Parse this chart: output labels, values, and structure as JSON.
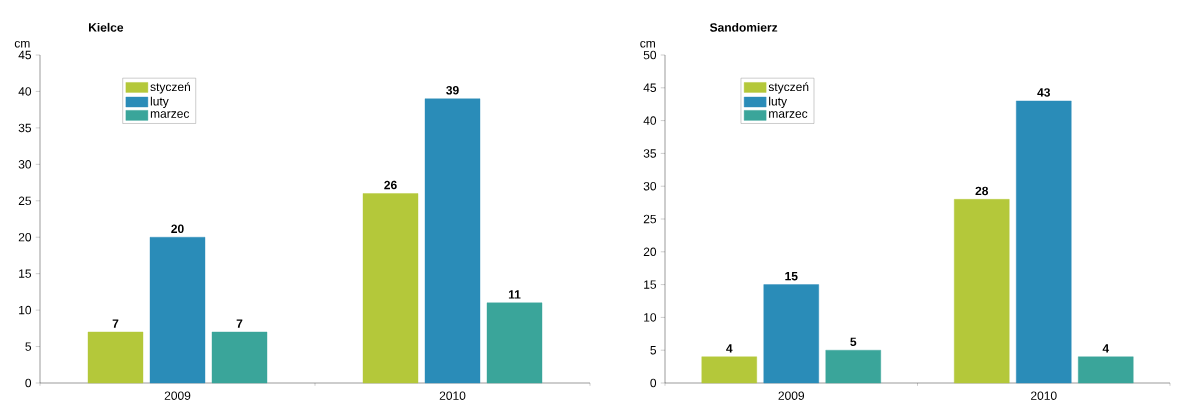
{
  "chart_data": [
    {
      "type": "bar",
      "title": "Kielce",
      "ylabel": "cm",
      "categories": [
        "2009",
        "2010"
      ],
      "series": [
        {
          "name": "styczeń",
          "color": "#b4c83a",
          "values": [
            7,
            26
          ]
        },
        {
          "name": "luty",
          "color": "#2a8cb8",
          "values": [
            20,
            39
          ]
        },
        {
          "name": "marzec",
          "color": "#3aa59a",
          "values": [
            7,
            11
          ]
        }
      ],
      "ylim": [
        0,
        45
      ],
      "yticks": [
        0,
        5,
        10,
        15,
        20,
        25,
        30,
        35,
        40,
        45
      ],
      "legend": "top left",
      "data_labels": true
    },
    {
      "type": "bar",
      "title": "Sandomierz",
      "ylabel": "cm",
      "categories": [
        "2009",
        "2010"
      ],
      "series": [
        {
          "name": "styczeń",
          "color": "#b4c83a",
          "values": [
            4,
            28
          ]
        },
        {
          "name": "luty",
          "color": "#2a8cb8",
          "values": [
            15,
            43
          ]
        },
        {
          "name": "marzec",
          "color": "#3aa59a",
          "values": [
            5,
            4
          ]
        }
      ],
      "ylim": [
        0,
        50
      ],
      "yticks": [
        0,
        5,
        10,
        15,
        20,
        25,
        30,
        35,
        40,
        45,
        50
      ],
      "legend": "top left",
      "data_labels": true
    }
  ]
}
